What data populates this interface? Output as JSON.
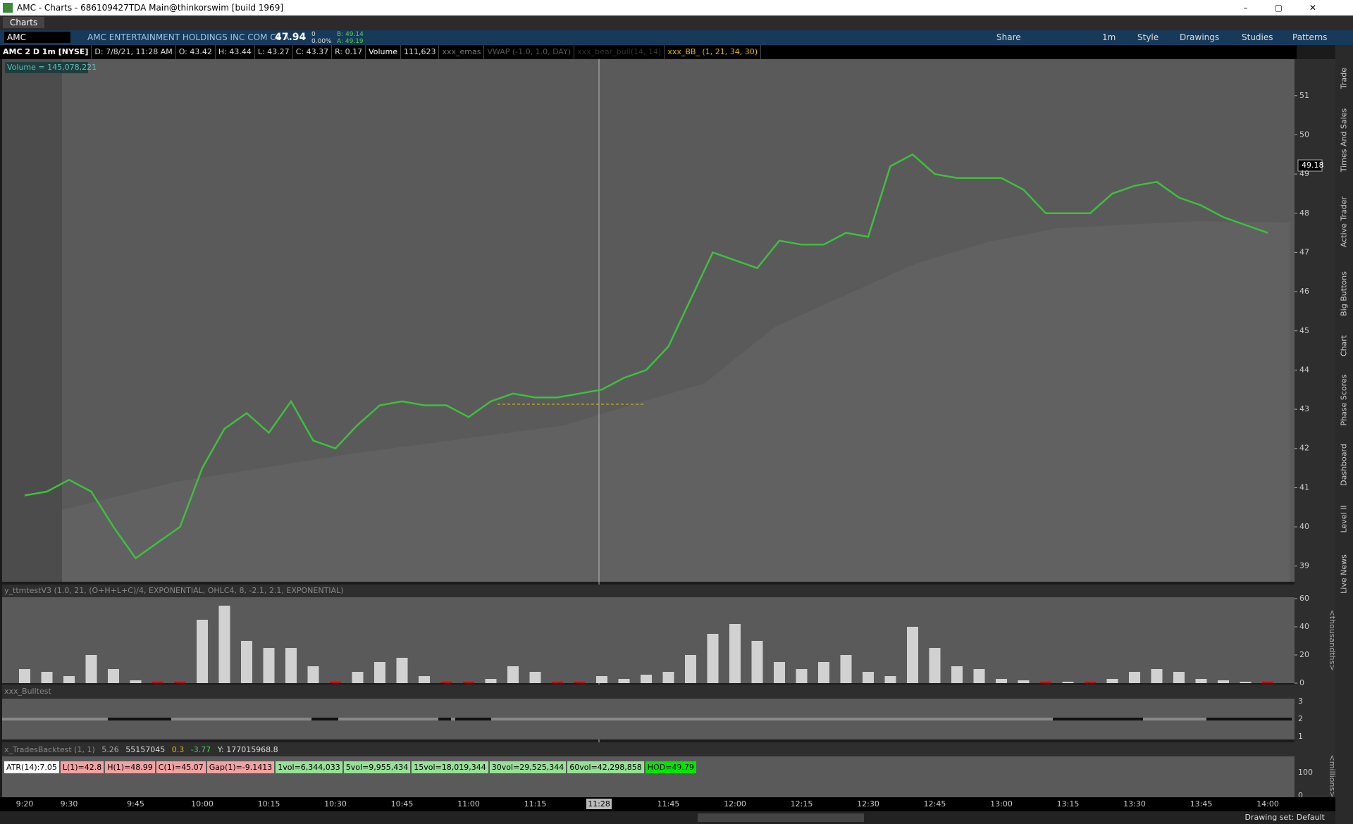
{
  "window": {
    "title": "AMC - Charts - 686109427TDA Main@thinkorswim [build 1969]",
    "tab": "Charts"
  },
  "toolbar": {
    "symbol": "AMC",
    "description": "AMC ENTERTAINMENT HOLDINGS INC COM CL A",
    "last": "47.94",
    "change": "0",
    "change_pct": "0.00%",
    "bid": "B: 49.14",
    "ask": "A: 49.19",
    "aggregation": "1m",
    "buttons": [
      "Share",
      "Style",
      "Drawings",
      "Studies",
      "Patterns"
    ]
  },
  "info_bar": {
    "chart_label": "AMC 2 D 1m [NYSE]",
    "date": "D: 7/8/21, 11:28 AM",
    "open": "O: 43.42",
    "high": "H: 43.44",
    "low": "L: 43.27",
    "close": "C: 43.37",
    "range": "R: 0.17",
    "volume_label": "Volume",
    "volume": "111,623",
    "studies": [
      "xxx_emas",
      "VWAP (-1.0, 1.0, DAY)",
      "xxx_bear_bull(14, 14)",
      "xxx_BB_ (1, 21, 34, 30)"
    ]
  },
  "volume_total": "Volume = 145,078,221",
  "price_bubble": "49.18",
  "cursor_time": "11:28",
  "ttm_pane": {
    "title": "y_ttmtestV3 (1.0, 21, (O+H+L+C)/4, EXPONENTIAL, OHLC4, 8, -2.1, 2.1, EXPONENTIAL)",
    "unit": "<thousandths>"
  },
  "bull_pane": {
    "title": "xxx_Bulltest",
    "ticks": [
      "3",
      "2",
      "1"
    ]
  },
  "trades_pane": {
    "title": "x_TradesBacktest (1, 1)",
    "values": [
      "5.26",
      "55157045",
      "0.3",
      "-3.77",
      "Y: 177015968.8"
    ],
    "labels": [
      "ATR(14):7.05",
      "L(1)=42.8",
      "H(1)=48.99",
      "C(1)=45.07",
      "Gap(1)=-9.1413",
      "1vol=6,344,033",
      "5vol=9,955,434",
      "15vol=18,019,344",
      "30vol=29,525,344",
      "60vol=42,298,858",
      "HOD=49.79"
    ],
    "ticks": [
      "100",
      "0"
    ],
    "unit": "<millions>"
  },
  "sidebar": [
    "Trade",
    "Times And Sales",
    "Active Trader",
    "Big Buttons",
    "Chart",
    "Phase Scores",
    "Dashboard",
    "Level II",
    "Live News"
  ],
  "status": "Drawing set: Default",
  "chart_data": [
    {
      "type": "line",
      "color": "#3fbf3f",
      "categories": [
        "9:20",
        null,
        "9:30",
        null,
        null,
        "9:45",
        null,
        null,
        "10:00",
        null,
        null,
        "10:15",
        null,
        null,
        "10:30",
        null,
        null,
        "10:45",
        null,
        null,
        "11:00",
        null,
        null,
        "11:15",
        null,
        null,
        null,
        null,
        null,
        "11:45",
        null,
        null,
        "12:00",
        null,
        null,
        "12:15",
        null,
        null,
        "12:30",
        null,
        null,
        "12:45",
        null,
        null,
        "13:00",
        null,
        null,
        "13:15",
        null,
        null,
        "13:30",
        null,
        null,
        "13:45",
        null,
        null,
        "14:00"
      ],
      "values": [
        40.8,
        40.9,
        41.2,
        40.9,
        40.0,
        39.2,
        39.6,
        40.0,
        41.5,
        42.5,
        42.9,
        42.4,
        43.2,
        42.2,
        42.0,
        42.6,
        43.1,
        43.2,
        43.1,
        43.1,
        42.8,
        43.2,
        43.4,
        43.3,
        43.3,
        43.4,
        43.5,
        43.8,
        44.0,
        44.6,
        45.8,
        47.0,
        46.8,
        46.6,
        47.3,
        47.2,
        47.2,
        47.5,
        47.4,
        49.2,
        49.5,
        49.0,
        48.9,
        48.9,
        48.9,
        48.6,
        48.0,
        48.0,
        48.0,
        48.5,
        48.7,
        48.8,
        48.4,
        48.2,
        47.9,
        47.7,
        47.5
      ],
      "ylim": [
        38.6,
        51.93
      ],
      "yticks": [
        39,
        40,
        41,
        42,
        43,
        44,
        45,
        46,
        47,
        48,
        49,
        50,
        51
      ]
    },
    {
      "type": "bar",
      "color": "#e6e6e6",
      "values": [
        10,
        8,
        5,
        20,
        10,
        2,
        0,
        0,
        45,
        55,
        30,
        25,
        25,
        12,
        0,
        8,
        15,
        18,
        5,
        0,
        0,
        3,
        12,
        8,
        0,
        0,
        5,
        3,
        6,
        8,
        20,
        35,
        42,
        30,
        15,
        10,
        15,
        20,
        8,
        5,
        40,
        25,
        12,
        10,
        3,
        2,
        0,
        1,
        0,
        3,
        8,
        10,
        8,
        3,
        2,
        1,
        0
      ],
      "ylim": [
        0,
        61
      ],
      "yticks": [
        0,
        20,
        40,
        60
      ]
    }
  ]
}
